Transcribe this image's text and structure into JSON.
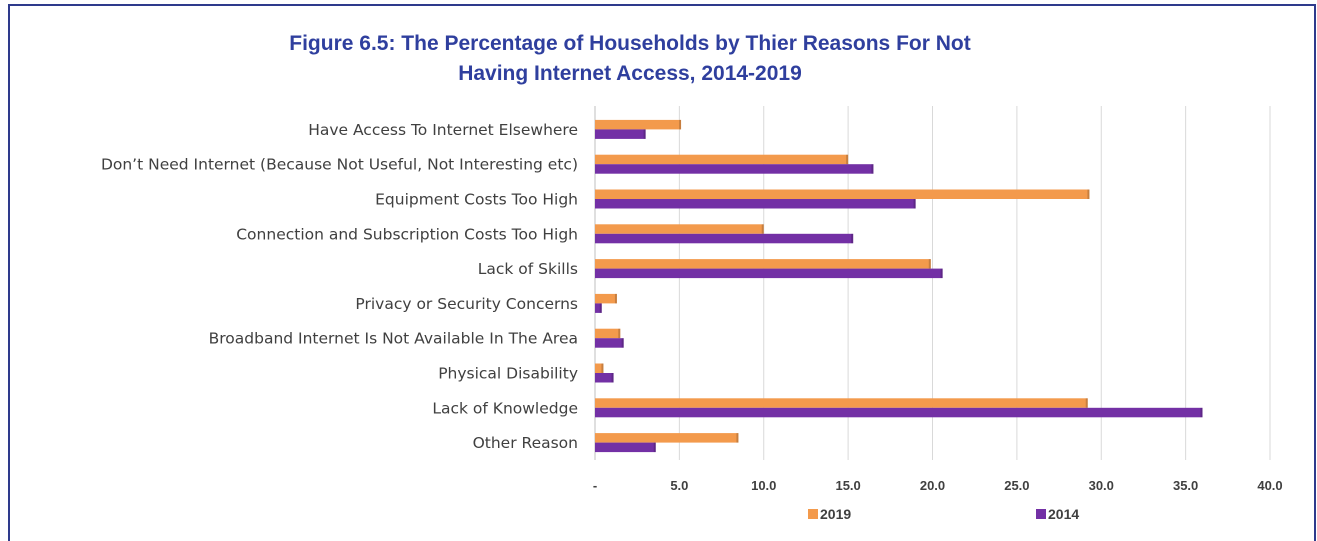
{
  "title_line1": "Figure 6.5: The Percentage of Households by Thier Reasons For Not",
  "title_line2": "Having Internet Access, 2014-2019",
  "colors": {
    "s2019": "#f39a4c",
    "s2014": "#7330a5",
    "frame": "#2e3a8c",
    "title": "#2f3f9e"
  },
  "chart_data": {
    "type": "bar",
    "orientation": "horizontal",
    "categories": [
      "Have Access To Internet Elsewhere",
      "Don’t Need Internet (Because Not Useful, Not Interesting etc)",
      "Equipment Costs Too High",
      "Connection and Subscription Costs Too High",
      "Lack of Skills",
      "Privacy or Security Concerns",
      "Broadband Internet Is Not Available In The Area",
      "Physical Disability",
      "Lack of Knowledge",
      "Other Reason"
    ],
    "series": [
      {
        "name": "2019",
        "values": [
          5.1,
          15.0,
          29.3,
          10.0,
          19.9,
          1.3,
          1.5,
          0.5,
          29.2,
          8.5
        ]
      },
      {
        "name": "2014",
        "values": [
          3.0,
          16.5,
          19.0,
          15.3,
          20.6,
          0.4,
          1.7,
          1.1,
          36.0,
          3.6
        ]
      }
    ],
    "xlim": [
      0,
      40
    ],
    "xticks": [
      "-",
      "5.0",
      "10.0",
      "15.0",
      "20.0",
      "25.0",
      "30.0",
      "35.0",
      "40.0"
    ],
    "grid": true,
    "legend_position": "bottom"
  }
}
